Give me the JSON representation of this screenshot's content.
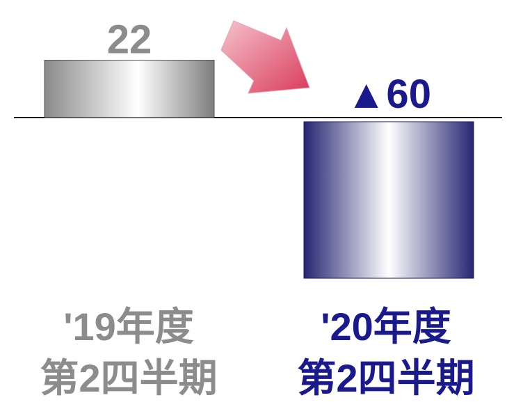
{
  "chart_data": {
    "type": "bar",
    "categories": [
      {
        "line1": "'19年度",
        "line2": "第2四半期"
      },
      {
        "line1": "'20年度",
        "line2": "第2四半期"
      }
    ],
    "values": [
      22,
      -60
    ],
    "value_labels": [
      "22",
      "▲60"
    ],
    "colors": {
      "bar_2019": "#8a8a8a",
      "bar_2020": "#262673",
      "label_2019": "#8c8c8c",
      "label_2020": "#1a1a8c",
      "arrow": "#d93c5c"
    },
    "decorations": [
      "down-right-arrow"
    ]
  }
}
